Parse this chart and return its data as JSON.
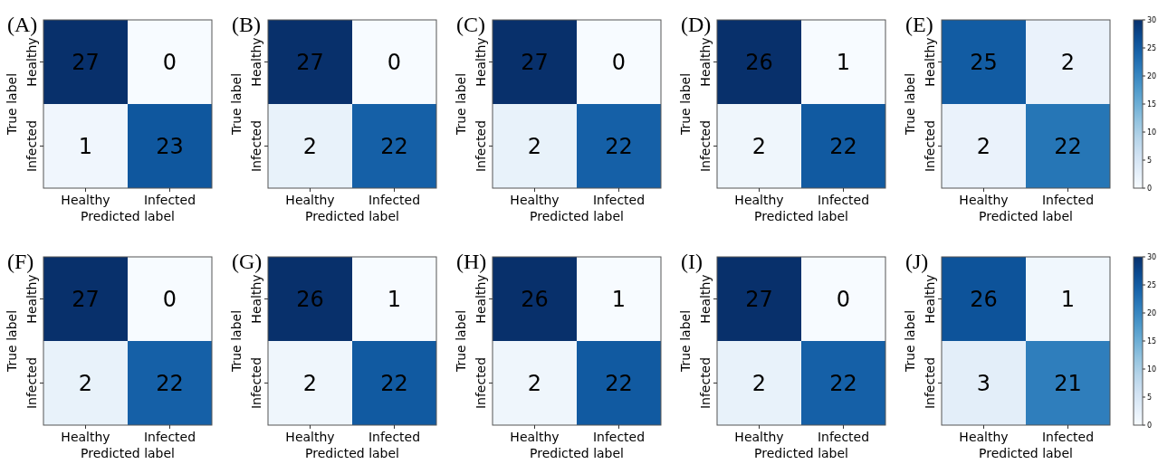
{
  "chart_data": [
    {
      "type": "heatmap",
      "title": "(A)",
      "xlabel": "Predicted label",
      "ylabel": "True label",
      "categories": [
        "Healthy",
        "Infected"
      ],
      "y_categories": [
        "Healthy",
        "Infected"
      ],
      "cells": [
        [
          27,
          0
        ],
        [
          1,
          23
        ]
      ],
      "data_labels": true
    },
    {
      "type": "heatmap",
      "title": "(B)",
      "xlabel": "Predicted label",
      "ylabel": "True label",
      "categories": [
        "Healthy",
        "Infected"
      ],
      "y_categories": [
        "Healthy",
        "Infected"
      ],
      "cells": [
        [
          27,
          0
        ],
        [
          2,
          22
        ]
      ],
      "data_labels": true
    },
    {
      "type": "heatmap",
      "title": "(C)",
      "xlabel": "Predicted label",
      "ylabel": "True label",
      "categories": [
        "Healthy",
        "Infected"
      ],
      "y_categories": [
        "Healthy",
        "Infected"
      ],
      "cells": [
        [
          27,
          0
        ],
        [
          2,
          22
        ]
      ],
      "data_labels": true
    },
    {
      "type": "heatmap",
      "title": "(D)",
      "xlabel": "Predicted label",
      "ylabel": "True label",
      "categories": [
        "Healthy",
        "Infected"
      ],
      "y_categories": [
        "Healthy",
        "Infected"
      ],
      "cells": [
        [
          26,
          1
        ],
        [
          2,
          22
        ]
      ],
      "data_labels": true
    },
    {
      "type": "heatmap",
      "title": "(E)",
      "xlabel": "Predicted label",
      "ylabel": "True label",
      "categories": [
        "Healthy",
        "Infected"
      ],
      "y_categories": [
        "Healthy",
        "Infected"
      ],
      "cells": [
        [
          25,
          2
        ],
        [
          2,
          22
        ]
      ],
      "clim": [
        0,
        30
      ],
      "cticks": [
        0,
        5,
        10,
        15,
        20,
        25,
        30
      ],
      "data_labels": true
    },
    {
      "type": "heatmap",
      "title": "(F)",
      "xlabel": "Predicted label",
      "ylabel": "True label",
      "categories": [
        "Healthy",
        "Infected"
      ],
      "y_categories": [
        "Healthy",
        "Infected"
      ],
      "cells": [
        [
          27,
          0
        ],
        [
          2,
          22
        ]
      ],
      "data_labels": true
    },
    {
      "type": "heatmap",
      "title": "(G)",
      "xlabel": "Predicted label",
      "ylabel": "True label",
      "categories": [
        "Healthy",
        "Infected"
      ],
      "y_categories": [
        "Healthy",
        "Infected"
      ],
      "cells": [
        [
          26,
          1
        ],
        [
          2,
          22
        ]
      ],
      "data_labels": true
    },
    {
      "type": "heatmap",
      "title": "(H)",
      "xlabel": "Predicted label",
      "ylabel": "True label",
      "categories": [
        "Healthy",
        "Infected"
      ],
      "y_categories": [
        "Healthy",
        "Infected"
      ],
      "cells": [
        [
          26,
          1
        ],
        [
          2,
          22
        ]
      ],
      "data_labels": true
    },
    {
      "type": "heatmap",
      "title": "(I)",
      "xlabel": "Predicted label",
      "ylabel": "True label",
      "categories": [
        "Healthy",
        "Infected"
      ],
      "y_categories": [
        "Healthy",
        "Infected"
      ],
      "cells": [
        [
          27,
          0
        ],
        [
          2,
          22
        ]
      ],
      "data_labels": true
    },
    {
      "type": "heatmap",
      "title": "(J)",
      "xlabel": "Predicted label",
      "ylabel": "True label",
      "categories": [
        "Healthy",
        "Infected"
      ],
      "y_categories": [
        "Healthy",
        "Infected"
      ],
      "cells": [
        [
          26,
          1
        ],
        [
          3,
          21
        ]
      ],
      "clim": [
        0,
        30
      ],
      "cticks": [
        0,
        5,
        10,
        15,
        20,
        25,
        30
      ],
      "data_labels": true
    }
  ]
}
